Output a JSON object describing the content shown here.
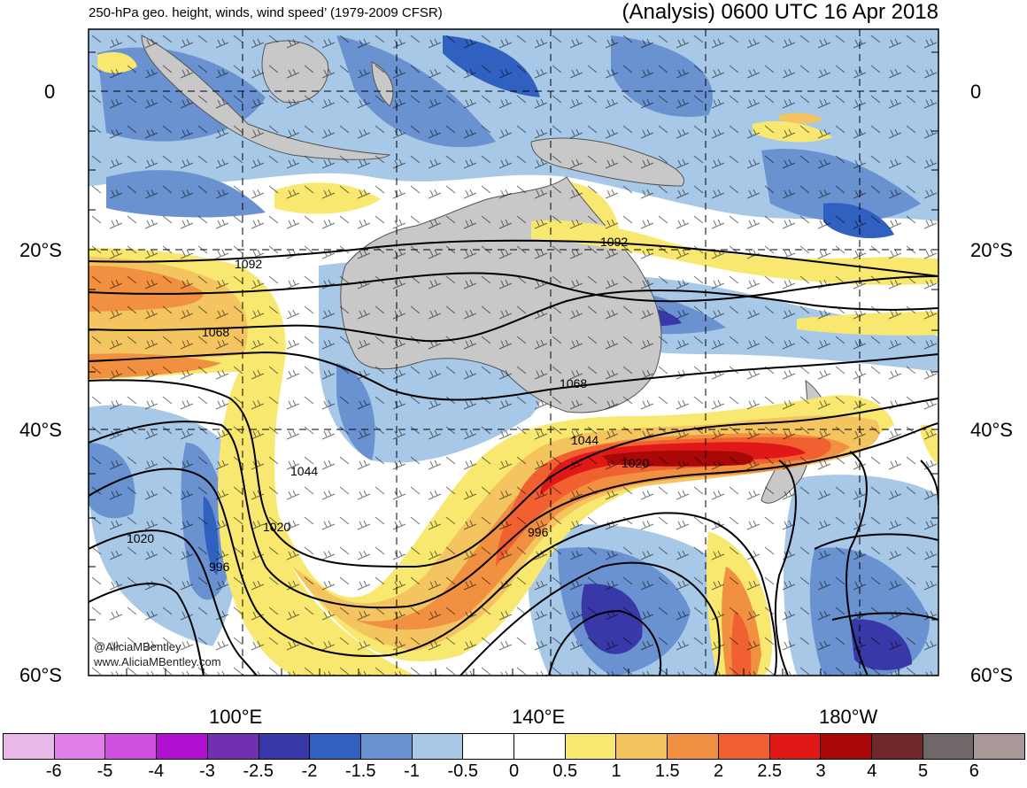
{
  "title": {
    "left": "250-hPa geo. height, winds, wind speed’ (1979-2009 CFSR)",
    "right": "(Analysis) 0600 UTC 16 Apr 2018"
  },
  "credit": [
    "@AliciaMBentley",
    "www.AliciaMBentley.com"
  ],
  "lat_labels": [
    "0",
    "20°S",
    "40°S",
    "60°S"
  ],
  "lon_labels": [
    "100°E",
    "140°E",
    "180°W"
  ],
  "contour_labels": [
    "1092",
    "1092",
    "1068",
    "1068",
    "1044",
    "1044",
    "1020",
    "1020",
    "1020",
    "996",
    "996"
  ],
  "colorbar": {
    "colors": [
      "#e8b8e8",
      "#e080e8",
      "#d050e0",
      "#b010d0",
      "#7030b0",
      "#3838a8",
      "#3060c0",
      "#6a92d0",
      "#a8c8e8",
      "#ffffff",
      "#ffffff",
      "#f8e870",
      "#f4c460",
      "#f09040",
      "#f06030",
      "#e01818",
      "#a80808",
      "#702828",
      "#706868",
      "#a89898"
    ],
    "labels": [
      "-6",
      "-5",
      "-4",
      "-3",
      "-2.5",
      "-2",
      "-1.5",
      "-1",
      "-0.5",
      "0",
      "0.5",
      "1",
      "1.5",
      "2",
      "2.5",
      "3",
      "4",
      "5",
      "6"
    ]
  },
  "colors": {
    "land": "#c8c8c8",
    "coast": "#555555",
    "contour": "#000000",
    "grid": "#000000"
  }
}
